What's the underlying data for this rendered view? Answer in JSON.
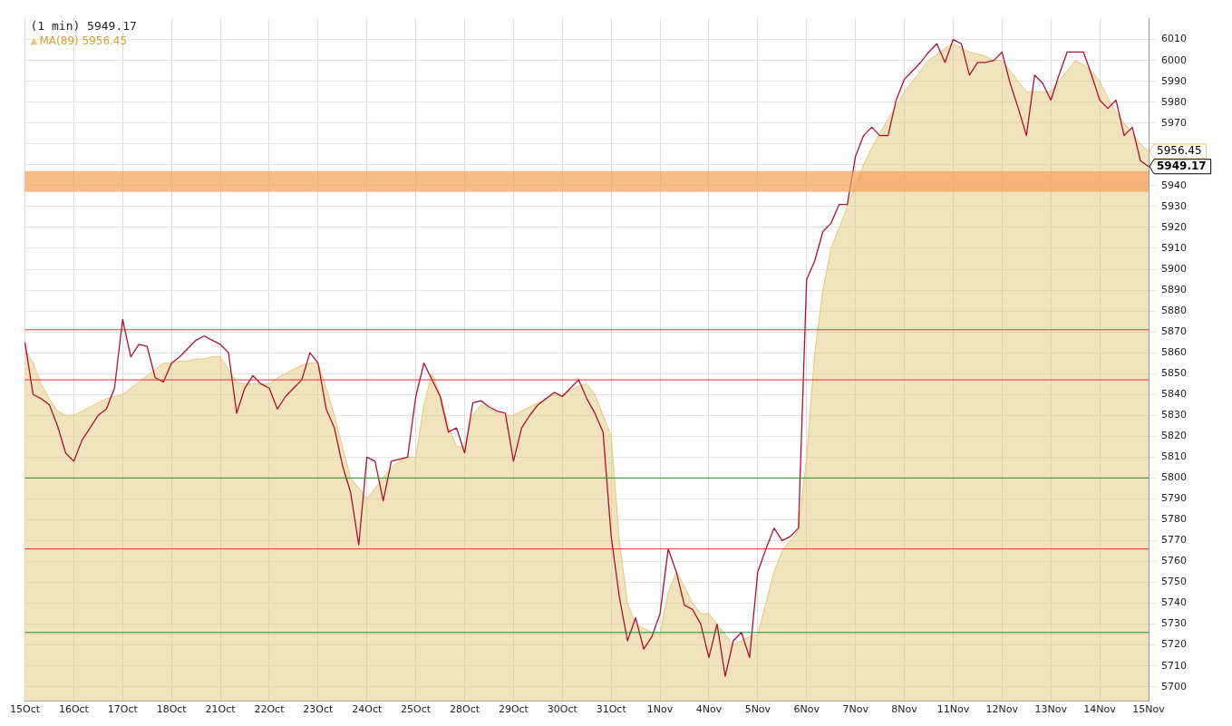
{
  "chart_data": {
    "type": "line",
    "title": "(1 min) 5949.17",
    "legend": "top left",
    "grid": true,
    "marker": "none",
    "line_style": "solid",
    "categories": [
      "15Oct",
      null,
      null,
      null,
      null,
      null,
      "16Oct",
      null,
      null,
      null,
      null,
      null,
      "17Oct",
      null,
      null,
      null,
      null,
      null,
      "18Oct",
      null,
      null,
      null,
      null,
      null,
      "21Oct",
      null,
      null,
      null,
      null,
      null,
      "22Oct",
      null,
      null,
      null,
      null,
      null,
      "23Oct",
      null,
      null,
      null,
      null,
      null,
      "24Oct",
      null,
      null,
      null,
      null,
      null,
      "25Oct",
      null,
      null,
      null,
      null,
      null,
      "28Oct",
      null,
      null,
      null,
      null,
      null,
      "29Oct",
      null,
      null,
      null,
      null,
      null,
      "30Oct",
      null,
      null,
      null,
      null,
      null,
      "31Oct",
      null,
      null,
      null,
      null,
      null,
      "1Nov",
      null,
      null,
      null,
      null,
      null,
      "4Nov",
      null,
      null,
      null,
      null,
      null,
      "5Nov",
      null,
      null,
      null,
      null,
      null,
      "6Nov",
      null,
      null,
      null,
      null,
      null,
      "7Nov",
      null,
      null,
      null,
      null,
      null,
      "8Nov",
      null,
      null,
      null,
      null,
      null,
      "11Nov",
      null,
      null,
      null,
      null,
      null,
      "12Nov",
      null,
      null,
      null,
      null,
      null,
      "13Nov",
      null,
      null,
      null,
      null,
      null,
      "14Nov",
      null,
      null,
      null,
      null,
      null,
      "15Nov"
    ],
    "ylim": [
      5693,
      6020
    ],
    "yticks": [
      5700,
      5710,
      5720,
      5730,
      5740,
      5750,
      5760,
      5770,
      5780,
      5790,
      5800,
      5810,
      5820,
      5830,
      5840,
      5850,
      5860,
      5870,
      5880,
      5890,
      5900,
      5910,
      5920,
      5930,
      5940,
      {
        "value": 5950,
        "label": null
      },
      {
        "value": 5960,
        "label": null
      },
      5970,
      5980,
      5990,
      6000,
      6010
    ],
    "series": [
      {
        "name": "MA(89) 5956.45",
        "type": "area",
        "color": "#e3c77a",
        "values": [
          5862,
          5855,
          5845,
          5838,
          5832,
          5830,
          5830,
          5832,
          5834,
          5836,
          5838,
          5839,
          5840,
          5843,
          5846,
          5849,
          5852,
          5855,
          5855,
          5856,
          5856,
          5857,
          5857,
          5858,
          5858,
          5852,
          5846,
          5845,
          5845,
          5845,
          5845,
          5848,
          5850,
          5852,
          5854,
          5855,
          5855,
          5843,
          5830,
          5815,
          5800,
          5795,
          5790,
          5795,
          5800,
          5805,
          5808,
          5810,
          5810,
          5835,
          5850,
          5840,
          5825,
          5815,
          5815,
          5830,
          5835,
          5833,
          5831,
          5830,
          5830,
          5832,
          5834,
          5836,
          5838,
          5840,
          5840,
          5842,
          5844,
          5845,
          5840,
          5830,
          5820,
          5770,
          5740,
          5730,
          5728,
          5726,
          5725,
          5745,
          5755,
          5748,
          5740,
          5735,
          5735,
          5730,
          5725,
          5720,
          5722,
          5724,
          5725,
          5740,
          5755,
          5765,
          5770,
          5775,
          5810,
          5860,
          5890,
          5910,
          5920,
          5930,
          5940,
          5950,
          5958,
          5965,
          5972,
          5978,
          5985,
          5990,
          5995,
          6000,
          6003,
          6006,
          6008,
          6006,
          6004,
          6003,
          6002,
          6000,
          6000,
          5995,
          5990,
          5985,
          5985,
          5985,
          5985,
          5990,
          5995,
          6000,
          5998,
          5995,
          5990,
          5982,
          5975,
          5970,
          5965,
          5960,
          5956.45
        ],
        "value_labels": [
          null,
          null,
          null,
          null,
          null,
          null,
          null,
          null,
          null,
          null,
          null,
          null,
          null,
          null,
          null,
          null,
          null,
          null,
          null,
          null,
          null,
          null,
          null,
          null,
          null,
          null,
          null,
          null,
          null,
          null,
          null,
          null,
          null,
          null,
          null,
          null,
          null,
          null,
          null,
          null,
          null,
          null,
          null,
          null,
          null,
          null,
          null,
          null,
          null,
          null,
          null,
          null,
          null,
          null,
          null,
          null,
          null,
          null,
          null,
          null,
          null,
          null,
          null,
          null,
          null,
          null,
          null,
          null,
          null,
          null,
          null,
          null,
          null,
          null,
          null,
          null,
          null,
          null,
          null,
          null,
          null,
          null,
          null,
          null,
          null,
          null,
          null,
          null,
          null,
          null,
          null,
          null,
          null,
          null,
          null,
          null,
          null,
          null,
          null,
          null,
          null,
          null,
          null,
          null,
          null,
          null,
          null,
          null,
          null,
          null,
          null,
          null,
          null,
          null,
          null,
          null,
          null,
          null,
          null,
          null,
          null,
          null,
          null,
          null,
          null,
          null,
          null,
          null,
          null,
          null,
          null,
          null,
          null,
          null,
          null,
          null,
          null,
          null,
          "5956.45"
        ]
      },
      {
        "color": "#b01030",
        "values": [
          5865,
          5840,
          5838,
          5835,
          5825,
          5812,
          5808,
          5818,
          5824,
          5830,
          5833,
          5843,
          5876,
          5858,
          5864,
          5863,
          5848,
          5846,
          5855,
          5858,
          5862,
          5866,
          5868,
          5866,
          5864,
          5860,
          5831,
          5843,
          5849,
          5845,
          5843,
          5833,
          5839,
          5843,
          5847,
          5860,
          5855,
          5833,
          5824,
          5806,
          5793,
          5768,
          5810,
          5808,
          5789,
          5808,
          5809,
          5810,
          5839,
          5855,
          5847,
          5839,
          5822,
          5824,
          5812,
          5836,
          5837,
          5834,
          5832,
          5831,
          5808,
          5824,
          5830,
          5835,
          5838,
          5841,
          5839,
          5843,
          5847,
          5838,
          5831,
          5822,
          5772,
          5743,
          5722,
          5733,
          5718,
          5724,
          5735,
          5766,
          5755,
          5739,
          5737,
          5730,
          5714,
          5730,
          5705,
          5722,
          5726,
          5714,
          5755,
          5766,
          5776,
          5770,
          5772,
          5776,
          5895,
          5904,
          5918,
          5922,
          5931,
          5931,
          5954,
          5964,
          5968,
          5964,
          5964,
          5981,
          5991,
          5995,
          5999,
          6004,
          6008,
          5999,
          6010,
          6008,
          5993,
          5999,
          5999,
          6000,
          6004,
          5989,
          5977,
          5964,
          5993,
          5989,
          5981,
          5993,
          6004,
          6004,
          6004,
          5993,
          5981,
          5977,
          5981,
          5964,
          5968,
          5952,
          5949.17
        ],
        "value_labels": [
          null,
          null,
          null,
          null,
          null,
          null,
          null,
          null,
          null,
          null,
          null,
          null,
          null,
          null,
          null,
          null,
          null,
          null,
          null,
          null,
          null,
          null,
          null,
          null,
          null,
          null,
          null,
          null,
          null,
          null,
          null,
          null,
          null,
          null,
          null,
          null,
          null,
          null,
          null,
          null,
          null,
          null,
          null,
          null,
          null,
          null,
          null,
          null,
          null,
          null,
          null,
          null,
          null,
          null,
          null,
          null,
          null,
          null,
          null,
          null,
          null,
          null,
          null,
          null,
          null,
          null,
          null,
          null,
          null,
          null,
          null,
          null,
          null,
          null,
          null,
          null,
          null,
          null,
          null,
          null,
          null,
          null,
          null,
          null,
          null,
          null,
          null,
          null,
          null,
          null,
          null,
          null,
          null,
          null,
          null,
          null,
          null,
          null,
          null,
          null,
          null,
          null,
          null,
          null,
          null,
          null,
          null,
          null,
          null,
          null,
          null,
          null,
          null,
          null,
          null,
          null,
          null,
          null,
          null,
          null,
          null,
          null,
          null,
          null,
          null,
          null,
          null,
          null,
          null,
          null,
          null,
          null,
          null,
          null,
          null,
          null,
          null,
          null,
          "5949.17"
        ]
      }
    ],
    "ref_lines": [
      {
        "axis": "y",
        "value": 5871,
        "color": "#e03030"
      },
      {
        "axis": "y",
        "value": 5847,
        "color": "#e03030"
      },
      {
        "axis": "y",
        "value": 5800,
        "color": "#2e8b2e"
      },
      {
        "axis": "y",
        "value": 5766,
        "color": "#e03030"
      },
      {
        "axis": "y",
        "value": 5726,
        "color": "#2e8b2e"
      }
    ],
    "bands": [
      {
        "axis": "y",
        "from": 5937,
        "to": 5947,
        "color": "#f5a05a"
      }
    ]
  }
}
